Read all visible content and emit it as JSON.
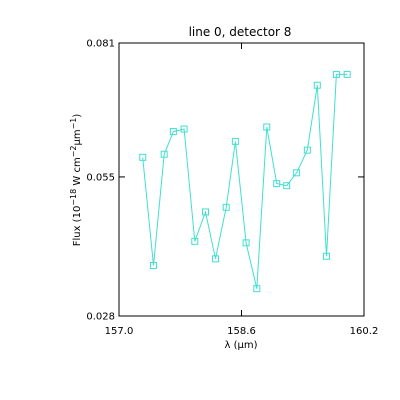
{
  "chart_data": {
    "type": "line",
    "title": "line 0, detector 8",
    "xlabel": "λ (μm)",
    "ylabel_parts": [
      "Flux (10",
      "−18",
      " W cm",
      "−2",
      "μm",
      "−1",
      ")"
    ],
    "xlim": [
      157.0,
      160.2
    ],
    "ylim": [
      0.028,
      0.081
    ],
    "x_ticks": [
      "157.0",
      "158.6",
      "160.2"
    ],
    "y_ticks": [
      "0.028",
      "0.055",
      "0.081"
    ],
    "x_tick_values": [
      157.0,
      158.6,
      160.2
    ],
    "y_tick_values": [
      0.028,
      0.055,
      0.081
    ],
    "grid": false,
    "line_color": "#40e0d0",
    "marker": "square",
    "series": [
      {
        "x": [
          157.31,
          157.45,
          157.59,
          157.71,
          157.85,
          157.99,
          158.13,
          158.26,
          158.4,
          158.52,
          158.66,
          158.8,
          158.93,
          159.06,
          159.19,
          159.32,
          159.46,
          159.59,
          159.71,
          159.84,
          159.98
        ],
        "y": [
          0.0588,
          0.0378,
          0.0594,
          0.0638,
          0.0643,
          0.0425,
          0.0482,
          0.0391,
          0.0491,
          0.0619,
          0.0422,
          0.0333,
          0.0647,
          0.0537,
          0.0533,
          0.0558,
          0.0602,
          0.0728,
          0.0396,
          0.0749,
          0.0749
        ]
      }
    ]
  }
}
